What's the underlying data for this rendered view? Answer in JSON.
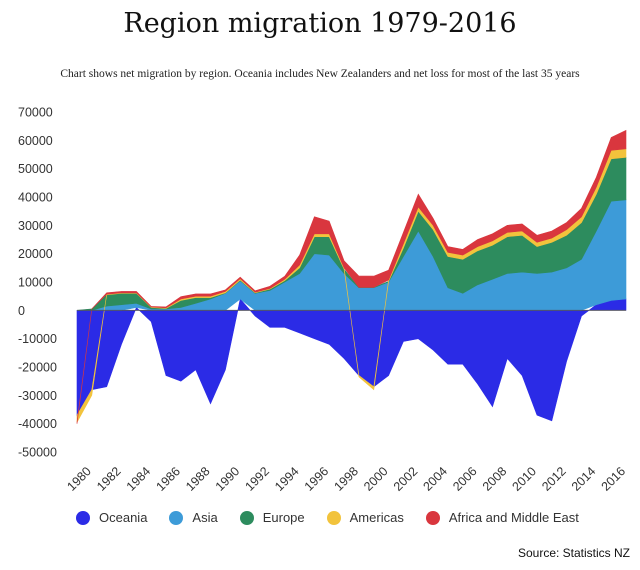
{
  "chart_data": {
    "type": "area",
    "title": "Region migration 1979-2016",
    "subtitle": "Chart shows net migration by region. Oceania includes New Zealanders and net loss for most of the last 35 years",
    "source": "Source: Statistics NZ",
    "stacked": true,
    "x": [
      1979,
      1980,
      1981,
      1982,
      1983,
      1984,
      1985,
      1986,
      1987,
      1988,
      1989,
      1990,
      1991,
      1992,
      1993,
      1994,
      1995,
      1996,
      1997,
      1998,
      1999,
      2000,
      2001,
      2002,
      2003,
      2004,
      2005,
      2006,
      2007,
      2008,
      2009,
      2010,
      2011,
      2012,
      2013,
      2014,
      2015,
      2016
    ],
    "xticks": [
      1980,
      1982,
      1984,
      1986,
      1988,
      1990,
      1992,
      1994,
      1996,
      1998,
      2000,
      2002,
      2004,
      2006,
      2008,
      2010,
      2012,
      2014,
      2016
    ],
    "yticks": [
      -50000,
      -40000,
      -30000,
      -20000,
      -10000,
      0,
      10000,
      20000,
      30000,
      40000,
      50000,
      60000,
      70000
    ],
    "ylim": [
      -50000,
      70000
    ],
    "xlim": [
      1979,
      2016
    ],
    "legend_position": "bottom",
    "series": [
      {
        "name": "Oceania",
        "color": "#2b2be6",
        "values": [
          -37000,
          -28000,
          -27000,
          -12000,
          1000,
          -4000,
          -23000,
          -25000,
          -21000,
          -33000,
          -21000,
          4000,
          -2000,
          -6000,
          -6000,
          -8000,
          -10000,
          -12000,
          -17000,
          -23000,
          -27000,
          -23000,
          -11000,
          -10000,
          -14000,
          -19000,
          -19000,
          -26000,
          -34000,
          -17000,
          -23000,
          -37000,
          -39000,
          -18000,
          -2000,
          2000,
          3500,
          4000
        ]
      },
      {
        "name": "Asia",
        "color": "#3d9bd8",
        "values": [
          0,
          0,
          1500,
          2000,
          1500,
          500,
          500,
          1000,
          2500,
          4000,
          6000,
          6500,
          6000,
          7000,
          10000,
          13000,
          20000,
          19500,
          13000,
          8000,
          8000,
          10000,
          19000,
          28000,
          19000,
          8000,
          6000,
          9000,
          11000,
          13000,
          13500,
          13000,
          13500,
          15000,
          18000,
          26000,
          35000,
          35000
        ]
      },
      {
        "name": "Europe",
        "color": "#2d8c5e",
        "values": [
          0,
          500,
          4000,
          4000,
          3500,
          500,
          200,
          2500,
          2000,
          500,
          200,
          200,
          200,
          500,
          500,
          2000,
          6000,
          6500,
          1500,
          100,
          100,
          200,
          3000,
          7000,
          9500,
          11000,
          12000,
          12000,
          12000,
          13000,
          13000,
          9500,
          10500,
          11500,
          13000,
          13000,
          15000,
          15000
        ]
      },
      {
        "name": "Americas",
        "color": "#f2c33c",
        "values": [
          -2500,
          -2000,
          200,
          200,
          200,
          200,
          200,
          500,
          500,
          500,
          500,
          500,
          200,
          200,
          500,
          1000,
          1000,
          1000,
          500,
          -500,
          -1000,
          500,
          1500,
          1500,
          1500,
          1500,
          1500,
          1500,
          1500,
          1500,
          1500,
          1500,
          1500,
          2000,
          2000,
          2500,
          3000,
          3000
        ]
      },
      {
        "name": "Africa and Middle East",
        "color": "#d9363e",
        "values": [
          -500,
          0,
          500,
          500,
          500,
          200,
          300,
          800,
          800,
          800,
          500,
          500,
          500,
          800,
          1000,
          3500,
          6000,
          4500,
          2500,
          4000,
          4000,
          3500,
          4000,
          4500,
          2500,
          2000,
          2000,
          2500,
          2500,
          2500,
          2500,
          2500,
          2500,
          2500,
          3000,
          3500,
          4500,
          6500
        ]
      }
    ]
  }
}
